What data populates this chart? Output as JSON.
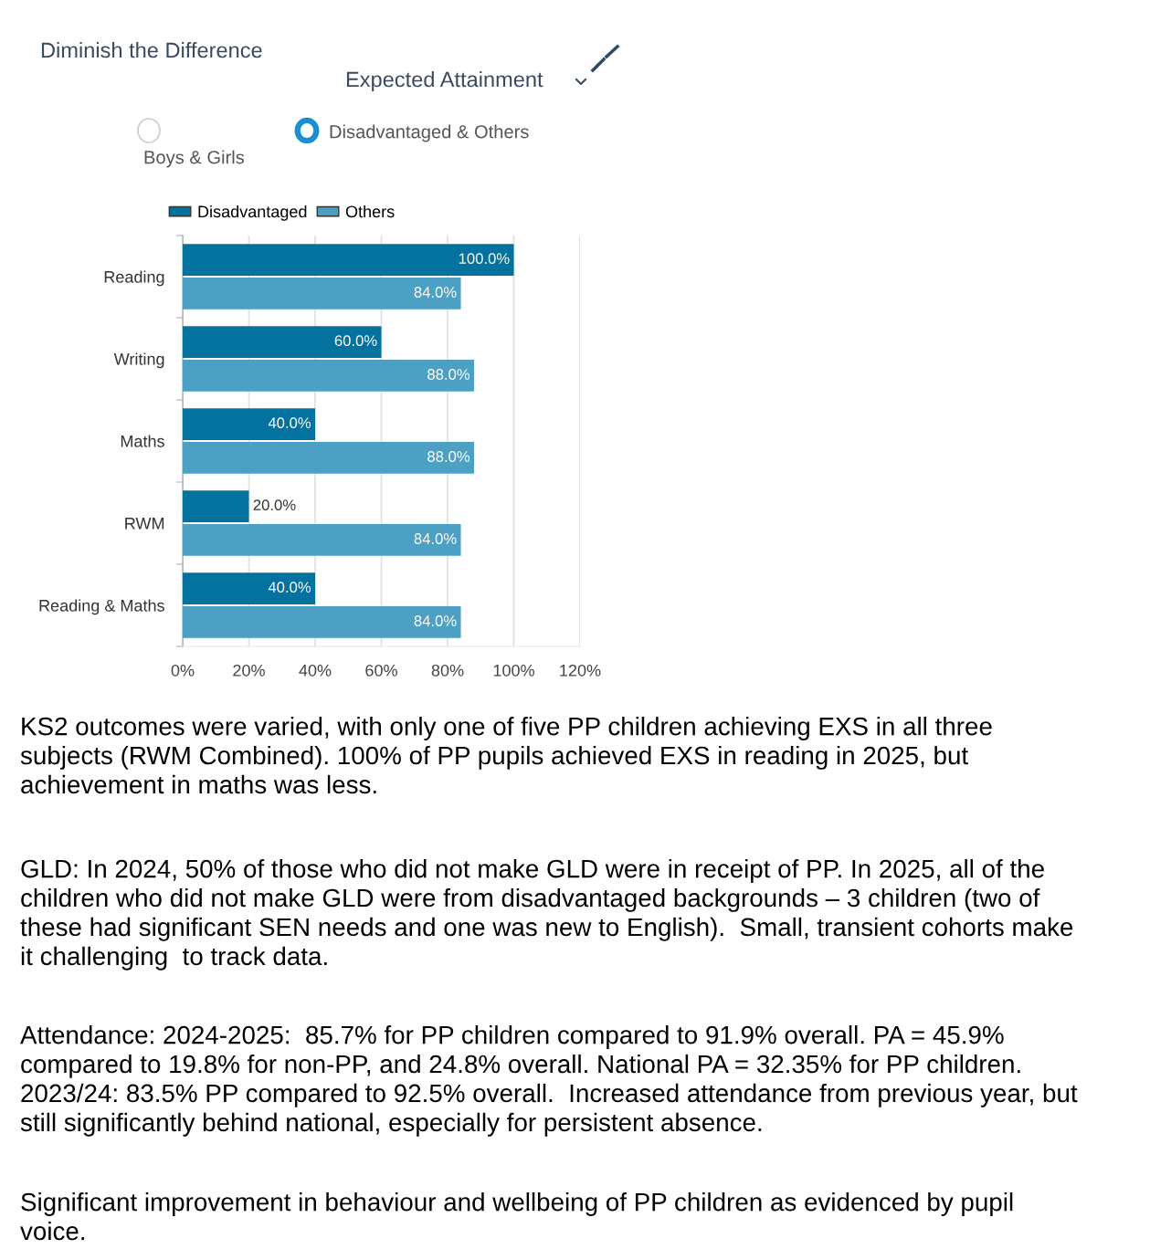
{
  "chart_data": {
    "type": "bar",
    "orientation": "horizontal",
    "title": "Diminish the Difference",
    "subtitle": "Expected Attainment",
    "categories": [
      "Reading",
      "Writing",
      "Maths",
      "RWM",
      "Reading & Maths"
    ],
    "series": [
      {
        "name": "Disadvantaged",
        "color": "#04729f",
        "values": [
          100,
          60,
          40,
          20,
          40
        ],
        "value_labels": [
          "100.0%",
          "60.0%",
          "40.0%",
          "20.0%",
          "40.0%"
        ]
      },
      {
        "name": "Others",
        "color": "#4ca0c4",
        "values": [
          84,
          88,
          88,
          84,
          84
        ],
        "value_labels": [
          "84.0%",
          "88.0%",
          "88.0%",
          "84.0%",
          "84.0%"
        ]
      }
    ],
    "xlim": [
      0,
      120
    ],
    "xticks": [
      {
        "value": 0,
        "label": "0%"
      },
      {
        "value": 20,
        "label": "20%"
      },
      {
        "value": 40,
        "label": "40%"
      },
      {
        "value": 60,
        "label": "60%"
      },
      {
        "value": 80,
        "label": "80%"
      },
      {
        "value": 100,
        "label": "100%"
      },
      {
        "value": 120,
        "label": "120%"
      }
    ],
    "grid": "x",
    "legend": "top",
    "annotations": [
      "Boys & Girls",
      "Disadvantaged & Others",
      "KS2 outcomes were varied, with only one of five PP children achieving EXS in all three\nsubjects (RWM Combined). 100% of PP pupils achieved EXS in reading in 2025, but\nachievement in maths was less.",
      "GLD: In 2024, 50% of those who did not make GLD were in receipt of PP. In 2025, all of the\nchildren who did not make GLD were from disadvantaged backgrounds – 3 children (two of\nthese had significant SEN needs and one was new to English).  Small, transient cohorts make\nit challenging  to track data.",
      "Attendance: 2024-2025:  85.7% for PP children compared to 91.9% overall. PA = 45.9%\ncompared to 19.8% for non-PP, and 24.8% overall. National PA = 32.35% for PP children.\n2023/24: 83.5% PP compared to 92.5% overall.  Increased attendance from previous year, but\nstill significantly behind national, especially for persistent absence.",
      "Significant improvement in behaviour and wellbeing of PP children as evidenced by pupil\nvoice."
    ]
  }
}
